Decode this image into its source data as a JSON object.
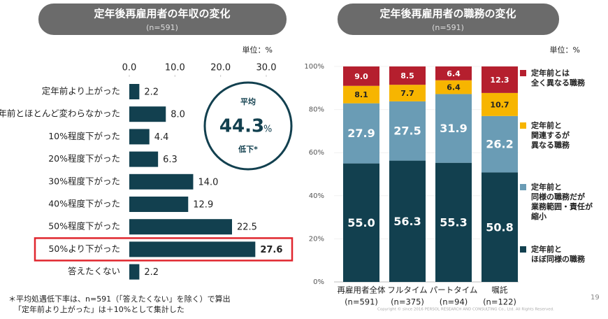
{
  "chart_data": [
    {
      "type": "hbar",
      "title": "定年後再雇用者の年収の変化",
      "subtitle": "(n=591)",
      "unit": "単位：%",
      "categories": [
        "定年前より上がった",
        "定年前とほとんど変わらなかった",
        "10%程度下がった",
        "20%程度下がった",
        "30%程度下がった",
        "40%程度下がった",
        "50%程度下がった",
        "50%より下がった",
        "答えたくない"
      ],
      "values": [
        2.2,
        8.0,
        4.4,
        6.3,
        14.0,
        12.9,
        22.5,
        27.6,
        2.2
      ],
      "value_labels": [
        "2.2",
        "8.0",
        "4.4",
        "6.3",
        "14.0",
        "12.9",
        "22.5",
        "27.6",
        "2.2"
      ],
      "color": "#12404f",
      "highlight_index": 7,
      "highlight_color": "#e0262e",
      "xlim": [
        0,
        30
      ],
      "xticks": [
        {
          "value": 0,
          "label": "0.0"
        },
        {
          "value": 10,
          "label": "10.0"
        },
        {
          "value": 20,
          "label": "20.0"
        },
        {
          "value": 30,
          "label": "30.0"
        }
      ],
      "average_label": "平均",
      "average_value": "44.3",
      "average_unit": "%",
      "average_note": "低下*",
      "footnotes": [
        "＊平均処遇低下率は、n=591（「答えたくない」を除く）で算出",
        "「定年前より上がった」は＋10%として集計した"
      ]
    },
    {
      "type": "stacked_bar",
      "title": "定年後再雇用者の職務の変化",
      "subtitle": "(n=591)",
      "unit": "単位：%",
      "categories": [
        "再雇用者全体",
        "フルタイム",
        "パートタイム",
        "嘱託"
      ],
      "category_notes": [
        "(n=591)",
        "(n=375)",
        "(n=94)",
        "(n=122)"
      ],
      "series": [
        {
          "name": "定年前と\nほぼ同様の職務",
          "color": "#12404f",
          "values": [
            55.0,
            56.3,
            55.3,
            50.8
          ],
          "value_labels": [
            "55.0",
            "56.3",
            "55.3",
            "50.8"
          ]
        },
        {
          "name": "定年前と\n同様の職務だが\n業務範囲・責任が\n縮小",
          "color": "#6a9cb5",
          "values": [
            27.9,
            27.5,
            31.9,
            26.2
          ],
          "value_labels": [
            "27.9",
            "27.5",
            "31.9",
            "26.2"
          ]
        },
        {
          "name": "定年前と\n関連するが\n異なる職務",
          "color": "#f7b500",
          "values": [
            8.1,
            7.7,
            6.4,
            10.7
          ],
          "value_labels": [
            "8.1",
            "7.7",
            "6.4",
            "10.7"
          ]
        },
        {
          "name": "定年前とは\n全く異なる職務",
          "color": "#b51f2e",
          "values": [
            9.0,
            8.5,
            6.4,
            12.3
          ],
          "value_labels": [
            "9.0",
            "8.5",
            "6.4",
            "12.3"
          ]
        }
      ],
      "ylim": [
        0,
        100
      ],
      "yticks": [
        {
          "value": 0,
          "label": "0%"
        },
        {
          "value": 20,
          "label": "20%"
        },
        {
          "value": 40,
          "label": "40%"
        },
        {
          "value": 60,
          "label": "60%"
        },
        {
          "value": 80,
          "label": "80%"
        },
        {
          "value": 100,
          "label": "100%"
        }
      ],
      "legend": "right"
    }
  ],
  "page_number": "19",
  "copyright": "Copyright © since 2016 PERSOL RESEARCH AND CONSULTING Co., Ltd. All Rights Reserved."
}
